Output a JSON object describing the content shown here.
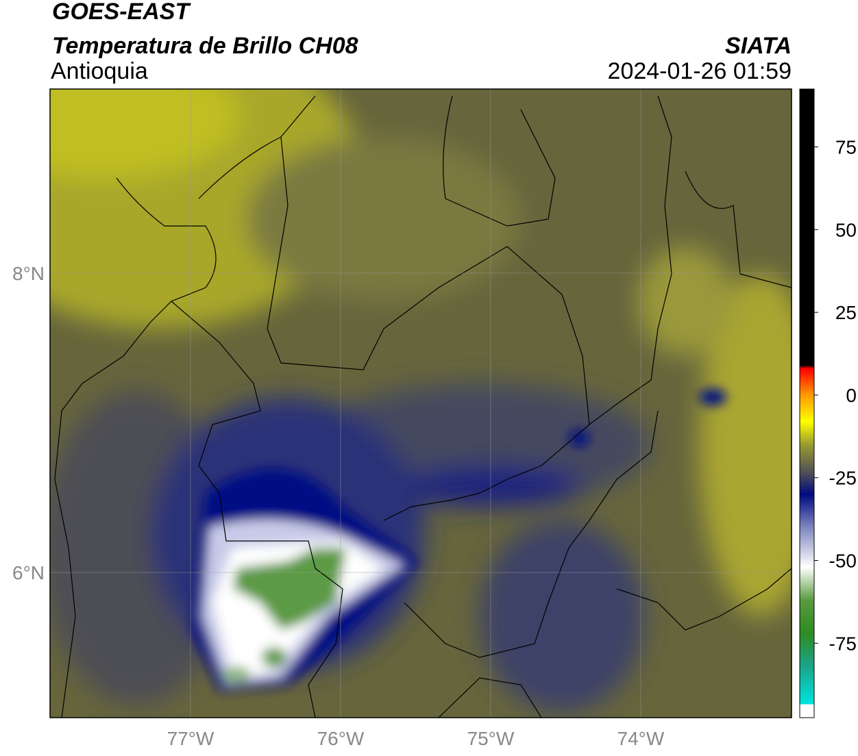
{
  "header": {
    "title": "GOES-EAST",
    "subtitle": "Temperatura de Brillo CH08",
    "region": "Antioquia",
    "source": "SIATA",
    "datetime": "2024-01-26 01:59"
  },
  "map": {
    "xlim": [
      -77.936,
      -72.995
    ],
    "ylim": [
      5.03,
      9.23
    ],
    "xticks": [
      {
        "value": -77,
        "label": "77°W"
      },
      {
        "value": -76,
        "label": "76°W"
      },
      {
        "value": -75,
        "label": "75°W"
      },
      {
        "value": -74,
        "label": "74°W"
      }
    ],
    "yticks": [
      {
        "value": 6,
        "label": "6°N"
      },
      {
        "value": 8,
        "label": "8°N"
      }
    ],
    "grid": true
  },
  "colorbar": {
    "lim": [
      -97.5,
      92.5
    ],
    "ticks": [
      -75,
      -50,
      -25,
      0,
      25,
      50,
      75
    ],
    "stops": [
      {
        "value": -97.5,
        "color": "#ffffff"
      },
      {
        "value": -93.5,
        "color": "#ffffff"
      },
      {
        "value": -93.5,
        "color": "#00e5e0"
      },
      {
        "value": -82,
        "color": "#1aa58a"
      },
      {
        "value": -72,
        "color": "#2e8b22"
      },
      {
        "value": -62,
        "color": "#5a9a40"
      },
      {
        "value": -52,
        "color": "#ffffff"
      },
      {
        "value": -40,
        "color": "#7f86c0"
      },
      {
        "value": -30,
        "color": "#000a80"
      },
      {
        "value": -24,
        "color": "#4a4a58"
      },
      {
        "value": -15,
        "color": "#9a9a30"
      },
      {
        "value": -8,
        "color": "#ffff00"
      },
      {
        "value": 0,
        "color": "#ff9900"
      },
      {
        "value": 8,
        "color": "#ff0000"
      },
      {
        "value": 9,
        "color": "#000000"
      },
      {
        "value": 92.5,
        "color": "#000000"
      }
    ]
  }
}
